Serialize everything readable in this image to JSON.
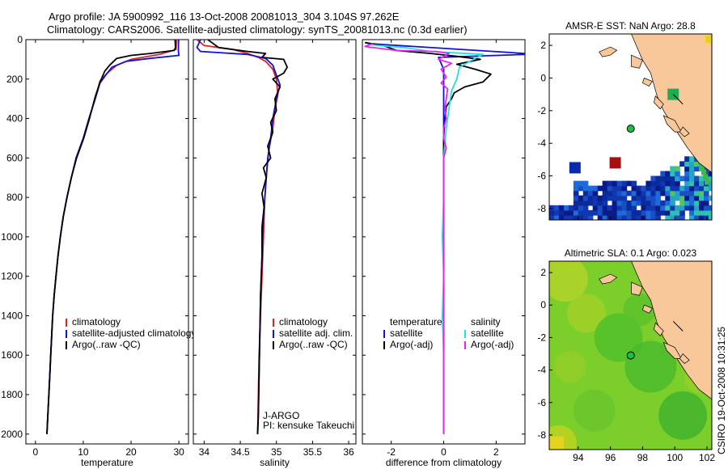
{
  "title_line1": "Argo profile: JA 5900992_116 13-Oct-2008 20081013_304 3.104S 97.262E",
  "title_line2": "Climatology: CARS2006. Satellite-adjusted climatology: synTS_20081013.nc (0.3d earlier)",
  "credit": "CSIRO 19-Oct-2008 10:31:25",
  "colors": {
    "red": "#dd2222",
    "blue": "#1111dd",
    "black": "#000000",
    "cyan": "#22e0e0",
    "magenta": "#ee22ee",
    "land": "#f8c89a",
    "sea": "#ffffff"
  },
  "chart_data": [
    {
      "type": "line",
      "id": "temp",
      "xlabel": "temperature",
      "xlim": [
        -2,
        32
      ],
      "ylim": [
        2050,
        0
      ],
      "xticks": [
        "0",
        "10",
        "20",
        "30"
      ],
      "yticks": [
        "0",
        "200",
        "400",
        "600",
        "800",
        "1000",
        "1200",
        "1400",
        "1600",
        "1800",
        "2000"
      ],
      "legend": [
        "climatology",
        "satellite-adjusted climatology",
        "Argo(..raw -QC)"
      ],
      "series": [
        {
          "name": "climatology",
          "color": "red",
          "points": [
            [
              29.5,
              0
            ],
            [
              29.4,
              50
            ],
            [
              26,
              75
            ],
            [
              20,
              100
            ],
            [
              17,
              130
            ],
            [
              15,
              170
            ],
            [
              13.5,
              210
            ],
            [
              12.5,
              300
            ],
            [
              11.2,
              400
            ],
            [
              10,
              500
            ],
            [
              8.5,
              600
            ],
            [
              7.5,
              700
            ],
            [
              6.6,
              800
            ],
            [
              5.8,
              900
            ],
            [
              5.2,
              1000
            ],
            [
              4.7,
              1100
            ],
            [
              4.3,
              1200
            ],
            [
              3.9,
              1300
            ],
            [
              3.6,
              1400
            ],
            [
              3.4,
              1500
            ],
            [
              3.2,
              1600
            ],
            [
              3,
              1700
            ],
            [
              2.8,
              1800
            ],
            [
              2.6,
              1900
            ],
            [
              2.4,
              2000
            ]
          ]
        },
        {
          "name": "satellite-adjusted climatology",
          "color": "blue",
          "points": [
            [
              29.9,
              0
            ],
            [
              29.9,
              60
            ],
            [
              30,
              80
            ],
            [
              24,
              95
            ],
            [
              19,
              110
            ],
            [
              16,
              140
            ],
            [
              15,
              170
            ],
            [
              13.5,
              220
            ],
            [
              12.5,
              300
            ],
            [
              11.2,
              400
            ],
            [
              10,
              500
            ],
            [
              8.5,
              600
            ],
            [
              7.5,
              700
            ],
            [
              6.6,
              800
            ],
            [
              5.8,
              900
            ],
            [
              5.2,
              1000
            ],
            [
              4.7,
              1100
            ],
            [
              4.3,
              1200
            ],
            [
              3.9,
              1300
            ],
            [
              3.6,
              1400
            ],
            [
              3.4,
              1500
            ],
            [
              3.2,
              1600
            ],
            [
              3,
              1700
            ],
            [
              2.8,
              1800
            ],
            [
              2.6,
              1900
            ],
            [
              2.4,
              2000
            ]
          ]
        },
        {
          "name": "Argo(..raw -QC)",
          "color": "black",
          "points": [
            [
              29.2,
              0
            ],
            [
              29.3,
              40
            ],
            [
              29,
              55
            ],
            [
              24,
              70
            ],
            [
              20,
              80
            ],
            [
              17,
              95
            ],
            [
              15.5,
              130
            ],
            [
              14.5,
              160
            ],
            [
              13.6,
              210
            ],
            [
              12.5,
              290
            ],
            [
              11.3,
              400
            ],
            [
              10.1,
              500
            ],
            [
              8.6,
              600
            ],
            [
              7.5,
              700
            ],
            [
              6.6,
              800
            ],
            [
              5.8,
              900
            ],
            [
              5.2,
              1000
            ],
            [
              4.7,
              1100
            ],
            [
              4.3,
              1200
            ],
            [
              3.9,
              1300
            ],
            [
              3.6,
              1400
            ],
            [
              3.4,
              1500
            ],
            [
              3.2,
              1600
            ],
            [
              3,
              1700
            ],
            [
              2.8,
              1800
            ],
            [
              2.6,
              1900
            ],
            [
              2.4,
              2000
            ]
          ]
        }
      ]
    },
    {
      "type": "line",
      "id": "sal",
      "xlabel": "salinity",
      "xlim": [
        33.85,
        36.1
      ],
      "ylim": [
        2050,
        0
      ],
      "xticks": [
        "34",
        "34.5",
        "35",
        "35.5",
        "36"
      ],
      "legend": [
        "climatology",
        "satellite adj. clim.",
        "Argo(..raw -QC)"
      ],
      "annotations": [
        "J-ARGO",
        "PI: kensuke Takeuchi"
      ],
      "series": [
        {
          "name": "climatology",
          "color": "red",
          "points": [
            [
              33.9,
              0
            ],
            [
              34.0,
              30
            ],
            [
              34.4,
              50
            ],
            [
              34.6,
              70
            ],
            [
              34.75,
              90
            ],
            [
              34.85,
              110
            ],
            [
              34.95,
              150
            ],
            [
              35.0,
              200
            ],
            [
              35.02,
              280
            ],
            [
              34.98,
              350
            ],
            [
              34.95,
              450
            ],
            [
              34.9,
              550
            ],
            [
              34.87,
              650
            ],
            [
              34.84,
              800
            ],
            [
              34.82,
              1000
            ],
            [
              34.8,
              1200
            ],
            [
              34.78,
              1400
            ],
            [
              34.76,
              1600
            ],
            [
              34.75,
              1800
            ],
            [
              34.74,
              2000
            ]
          ]
        },
        {
          "name": "satellite adj. clim.",
          "color": "blue",
          "points": [
            [
              33.95,
              0
            ],
            [
              33.9,
              40
            ],
            [
              33.95,
              60
            ],
            [
              34.6,
              75
            ],
            [
              34.85,
              95
            ],
            [
              34.95,
              130
            ],
            [
              35.0,
              180
            ],
            [
              35.05,
              230
            ],
            [
              35.0,
              300
            ],
            [
              34.95,
              400
            ],
            [
              34.92,
              500
            ],
            [
              34.88,
              600
            ],
            [
              34.85,
              750
            ],
            [
              34.82,
              900
            ],
            [
              34.8,
              1100
            ],
            [
              34.78,
              1300
            ],
            [
              34.77,
              1500
            ],
            [
              34.76,
              1700
            ],
            [
              34.75,
              1900
            ],
            [
              34.74,
              2000
            ]
          ]
        },
        {
          "name": "Argo(..raw -QC)",
          "color": "black",
          "points": [
            [
              34.05,
              0
            ],
            [
              34.2,
              40
            ],
            [
              34.6,
              60
            ],
            [
              34.85,
              70
            ],
            [
              34.8,
              90
            ],
            [
              35.1,
              100
            ],
            [
              35.15,
              140
            ],
            [
              35.1,
              170
            ],
            [
              34.95,
              200
            ],
            [
              35.05,
              240
            ],
            [
              34.98,
              300
            ],
            [
              35.0,
              360
            ],
            [
              34.92,
              420
            ],
            [
              34.95,
              470
            ],
            [
              34.88,
              540
            ],
            [
              34.92,
              600
            ],
            [
              34.82,
              650
            ],
            [
              34.86,
              700
            ],
            [
              34.8,
              780
            ],
            [
              34.83,
              850
            ],
            [
              34.8,
              950
            ],
            [
              34.8,
              1100
            ],
            [
              34.78,
              1300
            ],
            [
              34.77,
              1500
            ],
            [
              34.76,
              1700
            ],
            [
              34.75,
              1900
            ],
            [
              34.74,
              2000
            ]
          ]
        }
      ]
    },
    {
      "type": "line",
      "id": "diff",
      "xlabel": "difference from climatology",
      "xlim": [
        -3.1,
        3.1
      ],
      "ylim": [
        2050,
        0
      ],
      "xticks": [
        "-2",
        "0",
        "2"
      ],
      "legend_headers": [
        "temperature",
        "salinity"
      ],
      "legend": [
        "satellite",
        "Argo(-adj)",
        "satellite",
        "Argo(-adj)"
      ],
      "series": [
        {
          "name": "temperature satellite",
          "color": "blue",
          "points": [
            [
              -2.9,
              20
            ],
            [
              3.1,
              70
            ],
            [
              3.1,
              75
            ],
            [
              -0.2,
              90
            ],
            [
              -0.1,
              120
            ],
            [
              0,
              150
            ],
            [
              0,
              250
            ],
            [
              0,
              400
            ],
            [
              0,
              600
            ],
            [
              0,
              800
            ],
            [
              0,
              1000
            ],
            [
              0,
              1200
            ],
            [
              0,
              1400
            ],
            [
              0,
              1600
            ],
            [
              0,
              1800
            ],
            [
              0,
              2000
            ]
          ]
        },
        {
          "name": "temperature Argo(-adj)",
          "color": "black",
          "points": [
            [
              -3.0,
              15
            ],
            [
              -2.3,
              30
            ],
            [
              -1.8,
              55
            ],
            [
              -0.5,
              70
            ],
            [
              0.5,
              85
            ],
            [
              1.4,
              100
            ],
            [
              0.5,
              125
            ],
            [
              1.2,
              150
            ],
            [
              1.8,
              175
            ],
            [
              1.5,
              215
            ],
            [
              0.8,
              240
            ],
            [
              0.4,
              270
            ],
            [
              0.3,
              300
            ],
            [
              0.1,
              340
            ],
            [
              0.05,
              400
            ],
            [
              0,
              500
            ],
            [
              0,
              700
            ],
            [
              0,
              900
            ],
            [
              0,
              1200
            ],
            [
              0,
              1600
            ],
            [
              0,
              2000
            ]
          ]
        },
        {
          "name": "salinity satellite",
          "color": "cyan",
          "points": [
            [
              -2.9,
              25
            ],
            [
              -1.5,
              40
            ],
            [
              -0.5,
              60
            ],
            [
              1.5,
              75
            ],
            [
              1.2,
              95
            ],
            [
              0.6,
              140
            ],
            [
              0.5,
              200
            ],
            [
              0.3,
              260
            ],
            [
              0.2,
              350
            ],
            [
              0.1,
              450
            ],
            [
              0,
              600
            ],
            [
              0,
              800
            ],
            [
              -0.05,
              1000
            ],
            [
              0,
              1200
            ],
            [
              -0.05,
              1400
            ],
            [
              0,
              1600
            ],
            [
              0,
              1800
            ],
            [
              0,
              2000
            ]
          ]
        },
        {
          "name": "salinity Argo(-adj)",
          "color": "magenta",
          "points": [
            [
              -2.7,
              20
            ],
            [
              -3.0,
              35
            ],
            [
              -2.4,
              45
            ],
            [
              -1.8,
              55
            ],
            [
              -0.3,
              60
            ],
            [
              0.2,
              70
            ],
            [
              -0.2,
              100
            ],
            [
              0.3,
              120
            ],
            [
              -0.1,
              150
            ],
            [
              0.1,
              190
            ],
            [
              -0.1,
              220
            ],
            [
              0.15,
              250
            ],
            [
              0.1,
              300
            ],
            [
              0.05,
              350
            ],
            [
              0.1,
              400
            ],
            [
              0,
              450
            ],
            [
              0,
              500
            ],
            [
              0.1,
              550
            ],
            [
              0,
              600
            ],
            [
              0,
              700
            ],
            [
              0,
              800
            ],
            [
              0,
              900
            ],
            [
              0,
              1000
            ],
            [
              0,
              1200
            ],
            [
              0,
              1500
            ],
            [
              0,
              1800
            ],
            [
              0,
              2000
            ]
          ]
        }
      ]
    },
    {
      "type": "heatmap",
      "id": "sst",
      "title": "AMSR-E SST: NaN Argo: 28.8",
      "xlim": [
        92.2,
        102.3
      ],
      "ylim": [
        -8.7,
        2.7
      ],
      "xticks": [
        "94",
        "96",
        "98",
        "100",
        "102"
      ],
      "yticks": [
        "2",
        "0",
        "-2",
        "-4",
        "-6",
        "-8"
      ],
      "marker": {
        "lon": 97.262,
        "lat": -3.104
      },
      "squares": [
        {
          "lon": 93.8,
          "lat": -5.5,
          "color": "#0a2aa8"
        },
        {
          "lon": 96.3,
          "lat": -5.2,
          "color": "#a81010"
        },
        {
          "lon": 99.9,
          "lat": -1.0,
          "color": "#22aa55"
        }
      ]
    },
    {
      "type": "heatmap",
      "id": "sla",
      "title": "Altimetric SLA: 0.1 Argo: 0.023",
      "xlim": [
        92.2,
        102.3
      ],
      "ylim": [
        -8.9,
        2.7
      ],
      "xticks": [
        "94",
        "96",
        "98",
        "100",
        "102"
      ],
      "yticks": [
        "2",
        "0",
        "-2",
        "-4",
        "-6",
        "-8"
      ],
      "marker": {
        "lon": 97.262,
        "lat": -3.104
      }
    }
  ]
}
